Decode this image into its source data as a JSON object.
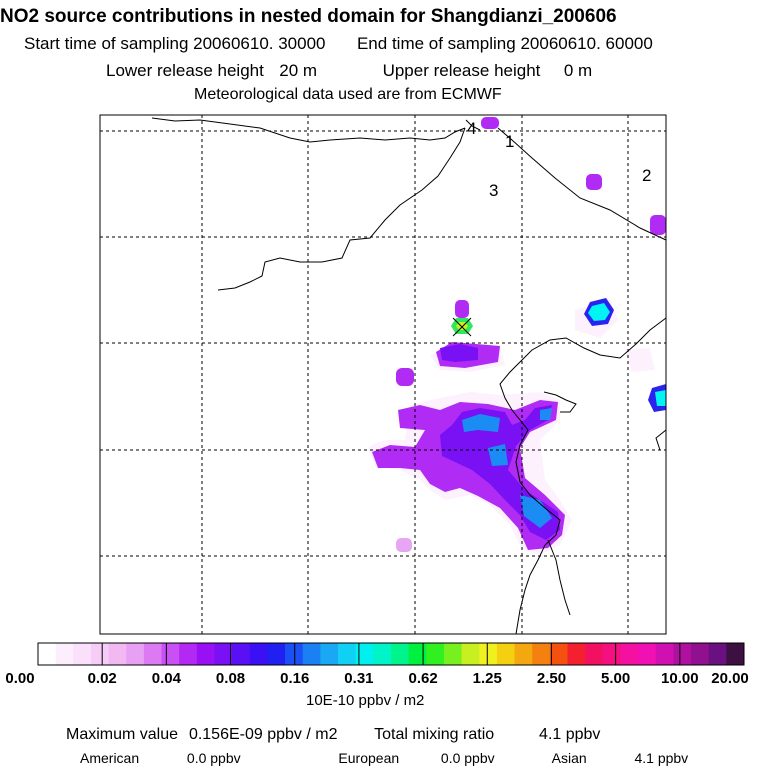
{
  "header": {
    "title": "NO2 source contributions in nested domain for Shangdianzi_200606",
    "start_label": "Start time of sampling",
    "start_value": "20060610. 30000",
    "end_label": "End time of sampling",
    "end_value": "20060610. 60000",
    "lower_label": "Lower release height",
    "lower_value": "20 m",
    "upper_label": "Upper release height",
    "upper_value": "0 m",
    "met_line": "Meteorological data used are from ECMWF"
  },
  "map": {
    "grid_labels": [
      "4",
      "1",
      "2",
      "3"
    ],
    "plume_colors": [
      "#fbe8fb",
      "#e7a6f3",
      "#b02cf4",
      "#7a10f4",
      "#2c22f0",
      "#1a8cf4",
      "#00f4f4",
      "#30e85a",
      "#c8f01e"
    ]
  },
  "legend": {
    "tick_labels": [
      "0.00",
      "0.02",
      "0.04",
      "0.08",
      "0.16",
      "0.31",
      "0.62",
      "1.25",
      "2.50",
      "5.00",
      "10.00",
      "20.00"
    ],
    "colors": [
      "#ffffff",
      "#fdeefd",
      "#fae0fa",
      "#f6cdf6",
      "#f2b8f2",
      "#e8a0f4",
      "#dc7af4",
      "#c850f4",
      "#b428f4",
      "#9a10f4",
      "#7a10f4",
      "#5a10f4",
      "#3c10f4",
      "#2020f0",
      "#1a50f4",
      "#1a80f4",
      "#1aa8f4",
      "#10d0f4",
      "#00f0f0",
      "#00f4c8",
      "#00f48c",
      "#00f040",
      "#30f020",
      "#78f020",
      "#c8f020",
      "#f0f020",
      "#f4d010",
      "#f4a810",
      "#f48010",
      "#f45010",
      "#f42030",
      "#f41060",
      "#f41080",
      "#f410a0",
      "#f010b4",
      "#d010b0",
      "#b010a0",
      "#901090",
      "#6a1080",
      "#3c1040"
    ],
    "unit": "10E-10 ppbv / m2"
  },
  "footer": {
    "max_label": "Maximum value",
    "max_value": "0.156E-09 ppbv / m2",
    "total_label": "Total mixing ratio",
    "total_value": "4.1 ppbv",
    "american_label": "American",
    "american_value": "0.0 ppbv",
    "european_label": "European",
    "european_value": "0.0 ppbv",
    "asian_label": "Asian",
    "asian_value": "4.1 ppbv"
  }
}
